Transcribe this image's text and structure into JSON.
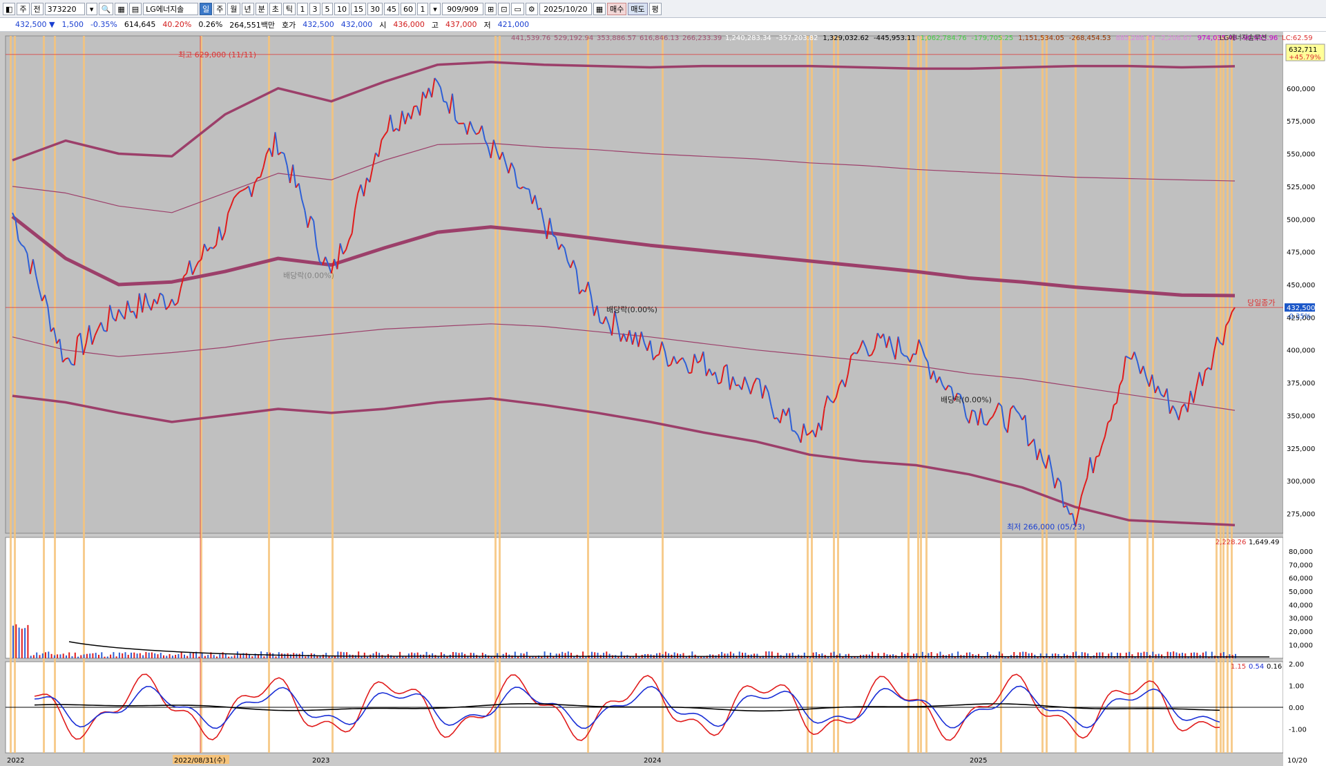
{
  "toolbar": {
    "items": [
      {
        "name": "menu-icon",
        "label": "◧"
      },
      {
        "name": "type-stock",
        "label": "주"
      },
      {
        "name": "market-all",
        "label": "전"
      },
      {
        "name": "code",
        "label": "373220"
      },
      {
        "name": "code-dropdown",
        "label": "▾"
      },
      {
        "name": "search-icon",
        "label": "🔍"
      },
      {
        "name": "grid-icon",
        "label": "▦"
      },
      {
        "name": "chart-icon",
        "label": "▤"
      },
      {
        "name": "stock-name",
        "label": "LG에너지솔"
      },
      {
        "name": "period-day",
        "label": "일",
        "selected": true
      },
      {
        "name": "period-week",
        "label": "주"
      },
      {
        "name": "period-month",
        "label": "월"
      },
      {
        "name": "period-year",
        "label": "년"
      },
      {
        "name": "period-minute",
        "label": "분"
      },
      {
        "name": "period-second",
        "label": "초"
      },
      {
        "name": "period-tick",
        "label": "틱"
      },
      {
        "name": "n-1",
        "label": "1"
      },
      {
        "name": "n-3",
        "label": "3"
      },
      {
        "name": "n-5",
        "label": "5"
      },
      {
        "name": "n-10",
        "label": "10"
      },
      {
        "name": "n-15",
        "label": "15"
      },
      {
        "name": "n-30",
        "label": "30"
      },
      {
        "name": "n-45",
        "label": "45"
      },
      {
        "name": "n-60",
        "label": "60"
      },
      {
        "name": "n-input",
        "label": "1"
      },
      {
        "name": "n-dropdown",
        "label": "▾"
      },
      {
        "name": "count",
        "label": "909/909"
      },
      {
        "name": "tool-a",
        "label": "⊞"
      },
      {
        "name": "tool-b",
        "label": "⊡"
      },
      {
        "name": "tool-c",
        "label": "▭"
      },
      {
        "name": "settings-icon",
        "label": "⚙"
      },
      {
        "name": "date",
        "label": "2025/10/20"
      },
      {
        "name": "calendar-icon",
        "label": "▦"
      },
      {
        "name": "buy",
        "label": "매수"
      },
      {
        "name": "sell",
        "label": "매도"
      },
      {
        "name": "avg",
        "label": "평"
      }
    ]
  },
  "quote": {
    "price": "432,500 ▼",
    "change": "1,500",
    "change_pct": "-0.35%",
    "volume": "614,645",
    "vol_ratio": "40.20%",
    "turnover_pct": "0.26%",
    "amount": "264,551백만",
    "ask_label": "호가",
    "ask": "432,500",
    "bid": "432,000",
    "open_label": "시",
    "open": "436,000",
    "high_label": "고",
    "high": "437,000",
    "low_label": "저",
    "low": "421,000"
  },
  "indicator_header": {
    "values": [
      {
        "text": "441,539.76",
        "color": "#a05070"
      },
      {
        "text": "529,192.94",
        "color": "#a05070"
      },
      {
        "text": "353,886.57",
        "color": "#a05070"
      },
      {
        "text": "616,846.13",
        "color": "#a05070"
      },
      {
        "text": "266,233.39",
        "color": "#a05070"
      },
      {
        "text": "1,240,283.34",
        "color": "#ffffff"
      },
      {
        "text": "-357,203.82",
        "color": "#ffffff"
      },
      {
        "text": "1,329,032.62",
        "color": "#000000"
      },
      {
        "text": "-445,953.11",
        "color": "#000000"
      },
      {
        "text": "1,062,784.76",
        "color": "#44cc44"
      },
      {
        "text": "-179,705.25",
        "color": "#44cc44"
      },
      {
        "text": "1,151,534.05",
        "color": "#993300"
      },
      {
        "text": "-268,454.53",
        "color": "#993300"
      },
      {
        "text": "885,286.19",
        "color": "#dd88dd"
      },
      {
        "text": "-2,206.67",
        "color": "#dd88dd"
      },
      {
        "text": "974,035.48",
        "color": "#cc00cc"
      },
      {
        "text": "-90,955.96",
        "color": "#cc00cc"
      }
    ],
    "stock_title": "LG에너지솔루션",
    "lc": "LC:62.59"
  },
  "price_panel": {
    "right_top_value": "632,711",
    "right_top_pct": "+45.79%",
    "current_label": "432,500",
    "current_pct": "-0.35%",
    "today_close": "당일종가",
    "high_annotation": "최고 629,000 (11/11)",
    "low_annotation": "최저 266,000 (05/23)",
    "dividend_1": "배당락(0.00%)",
    "dividend_2": "배당락(0.00%)",
    "dividend_3": "배당락(0.00%)",
    "axis": [
      "625,000",
      "600,000",
      "575,000",
      "550,000",
      "525,000",
      "500,000",
      "475,000",
      "450,000",
      "425,000",
      "400,000",
      "375,000",
      "350,000",
      "325,000",
      "300,000",
      "275,000"
    ]
  },
  "volume_panel": {
    "header_a": "2,228.26",
    "header_b": "1,649.49",
    "axis": [
      "80,000",
      "70,000",
      "60,000",
      "50,000",
      "40,000",
      "30,000",
      "20,000",
      "10,000"
    ]
  },
  "osc_panel": {
    "header_a": "1.15",
    "header_b": "0.54",
    "header_c": "0.16",
    "axis": [
      "2.00",
      "1.00",
      "0.00",
      "-1.00"
    ]
  },
  "time_axis": {
    "labels": [
      "2022",
      "2022/08/31(수)",
      "2023",
      "2024",
      "2025",
      "10/20"
    ]
  },
  "chart_data": {
    "type": "line",
    "title": "LG에너지솔루션",
    "ylim": [
      260000,
      640000
    ],
    "x": [
      "2022-01",
      "2022-03",
      "2022-05",
      "2022-07",
      "2022-09",
      "2022-11",
      "2023-01",
      "2023-03",
      "2023-05",
      "2023-07",
      "2023-09",
      "2023-11",
      "2024-01",
      "2024-03",
      "2024-05",
      "2024-07",
      "2024-09",
      "2024-11",
      "2025-01",
      "2025-03",
      "2025-05",
      "2025-07",
      "2025-09",
      "2025-10"
    ],
    "series": [
      {
        "values": [
          505000,
          392000,
          430000,
          440000,
          495000,
          560000,
          455000,
          570000,
          600000,
          555000,
          498000,
          430000,
          400000,
          390000,
          370000,
          330000,
          405000,
          400000,
          355000,
          345000,
          275000,
          395000,
          350000,
          432500
        ]
      },
      {
        "values": [
          502000,
          470000,
          450000,
          452000,
          460000,
          470000,
          465000,
          478000,
          490000,
          494000,
          490000,
          485000,
          480000,
          476000,
          472000,
          468000,
          464000,
          460000,
          455000,
          452000,
          448000,
          445000,
          442000,
          441540
        ]
      },
      {
        "values": [
          545000,
          560000,
          550000,
          548000,
          580000,
          600000,
          590000,
          605000,
          618000,
          620000,
          618000,
          617000,
          616000,
          617000,
          617000,
          617000,
          616000,
          615000,
          615000,
          616000,
          617000,
          617000,
          616000,
          616846
        ]
      },
      {
        "values": [
          525000,
          520000,
          510000,
          505000,
          520000,
          535000,
          530000,
          545000,
          557000,
          558000,
          555000,
          553000,
          550000,
          548000,
          546000,
          543000,
          541000,
          538000,
          536000,
          534000,
          532000,
          531000,
          530000,
          529193
        ]
      },
      {
        "values": [
          410000,
          400000,
          395000,
          398000,
          402000,
          408000,
          412000,
          416000,
          418000,
          420000,
          418000,
          414000,
          410000,
          405000,
          400000,
          396000,
          392000,
          388000,
          382000,
          378000,
          372000,
          366000,
          360000,
          353887
        ]
      },
      {
        "values": [
          365000,
          360000,
          352000,
          345000,
          350000,
          355000,
          352000,
          355000,
          360000,
          363000,
          358000,
          352000,
          345000,
          337000,
          330000,
          320000,
          315000,
          312000,
          305000,
          295000,
          280000,
          270000,
          268000,
          266233
        ]
      }
    ],
    "annotations": [
      "최고 629,000 (11/11)",
      "최저 266,000 (05/23)",
      "배당락(0.00%)",
      "당일종가"
    ]
  }
}
